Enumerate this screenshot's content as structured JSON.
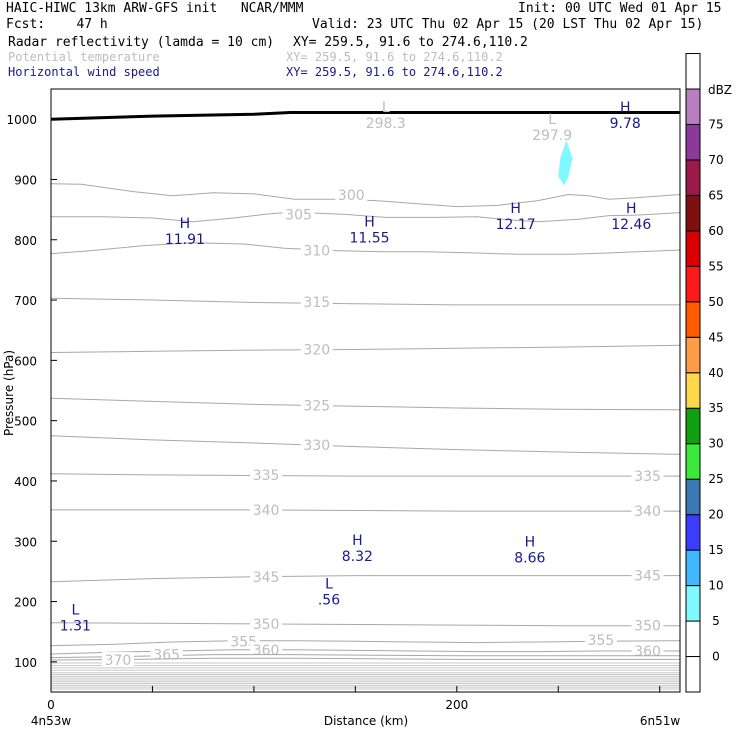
{
  "header": {
    "model": "HAIC-HIWC 13km ARW-GFS init",
    "org": "NCAR/MMM",
    "init": "Init: 00 UTC Wed 01 Apr 15",
    "fcst_label": "Fcst:",
    "fcst_value": "47 h",
    "valid": "Valid: 23 UTC Thu 02 Apr 15 (20 LST Thu 02 Apr 15)",
    "fields": [
      {
        "name": "Radar reflectivity (lamda = 10 cm)",
        "xy": "XY= 259.5, 91.6 to 274.6,110.2",
        "color": "#000000"
      },
      {
        "name": "Potential temperature",
        "xy": "XY= 259.5, 91.6 to 274.6,110.2",
        "color": "#bdbdbd"
      },
      {
        "name": "Horizontal wind speed",
        "xy": "XY= 259.5, 91.6 to 274.6,110.2",
        "color": "#1a1a8c"
      }
    ]
  },
  "chart_data": {
    "type": "contour",
    "xlabel": "Distance (km)",
    "ylabel": "Pressure (hPa)",
    "xlim": [
      0,
      310
    ],
    "ylim": [
      1050,
      50
    ],
    "x_ticks": [
      0,
      50,
      100,
      150,
      200,
      250,
      300
    ],
    "x_tick_labels": [
      "0",
      "200"
    ],
    "x_tick_label_values": [
      0,
      200
    ],
    "y_ticks": [
      100,
      200,
      300,
      400,
      500,
      600,
      700,
      800,
      900,
      1000
    ],
    "y_tick_labels": [
      "100",
      "200",
      "300",
      "400",
      "500",
      "600",
      "700",
      "800",
      "900",
      "1000"
    ],
    "start_label": "4n53w",
    "end_label": "6n51w",
    "theta_contours": [
      {
        "level": "300",
        "points": [
          [
            0,
            893
          ],
          [
            15,
            892
          ],
          [
            40,
            880
          ],
          [
            60,
            873
          ],
          [
            80,
            878
          ],
          [
            100,
            876
          ],
          [
            120,
            867
          ],
          [
            140,
            867
          ],
          [
            160,
            865
          ],
          [
            180,
            860
          ],
          [
            200,
            855
          ],
          [
            220,
            857
          ],
          [
            240,
            865
          ],
          [
            255,
            875
          ],
          [
            265,
            873
          ],
          [
            275,
            867
          ],
          [
            290,
            870
          ],
          [
            310,
            875
          ]
        ],
        "labels": [
          [
            148,
            874
          ]
        ]
      },
      {
        "level": "305",
        "points": [
          [
            0,
            838
          ],
          [
            25,
            838
          ],
          [
            50,
            836
          ],
          [
            70,
            830
          ],
          [
            90,
            836
          ],
          [
            105,
            842
          ],
          [
            115,
            845
          ],
          [
            125,
            845
          ],
          [
            145,
            842
          ],
          [
            165,
            837
          ],
          [
            190,
            837
          ],
          [
            210,
            838
          ],
          [
            230,
            832
          ],
          [
            240,
            830
          ],
          [
            260,
            834
          ],
          [
            275,
            840
          ],
          [
            290,
            841
          ],
          [
            310,
            845
          ]
        ],
        "labels": [
          [
            122,
            842
          ]
        ]
      },
      {
        "level": "310",
        "points": [
          [
            0,
            777
          ],
          [
            20,
            782
          ],
          [
            45,
            790
          ],
          [
            70,
            795
          ],
          [
            95,
            793
          ],
          [
            115,
            786
          ],
          [
            140,
            782
          ],
          [
            165,
            780
          ],
          [
            185,
            780
          ],
          [
            210,
            778
          ],
          [
            230,
            776
          ],
          [
            255,
            776
          ],
          [
            275,
            778
          ],
          [
            295,
            781
          ],
          [
            310,
            783
          ]
        ],
        "labels": [
          [
            131,
            782
          ]
        ]
      },
      {
        "level": "315",
        "points": [
          [
            0,
            703
          ],
          [
            50,
            700
          ],
          [
            100,
            696
          ],
          [
            150,
            694
          ],
          [
            200,
            692
          ],
          [
            250,
            692
          ],
          [
            310,
            692
          ]
        ],
        "labels": [
          [
            131,
            697
          ]
        ]
      },
      {
        "level": "320",
        "points": [
          [
            0,
            613
          ],
          [
            50,
            615
          ],
          [
            100,
            617
          ],
          [
            150,
            618
          ],
          [
            200,
            620
          ],
          [
            250,
            622
          ],
          [
            310,
            625
          ]
        ],
        "labels": [
          [
            131,
            618
          ]
        ]
      },
      {
        "level": "325",
        "points": [
          [
            0,
            537
          ],
          [
            50,
            532
          ],
          [
            100,
            527
          ],
          [
            150,
            524
          ],
          [
            200,
            521
          ],
          [
            250,
            519
          ],
          [
            310,
            518
          ]
        ],
        "labels": [
          [
            131,
            525
          ]
        ]
      },
      {
        "level": "330",
        "points": [
          [
            0,
            475
          ],
          [
            50,
            468
          ],
          [
            100,
            463
          ],
          [
            150,
            457
          ],
          [
            200,
            452
          ],
          [
            250,
            448
          ],
          [
            310,
            444
          ]
        ],
        "labels": [
          [
            131,
            460
          ]
        ]
      },
      {
        "level": "335",
        "points": [
          [
            0,
            412
          ],
          [
            50,
            410
          ],
          [
            100,
            409
          ],
          [
            150,
            408
          ],
          [
            200,
            408
          ],
          [
            250,
            408
          ],
          [
            310,
            408
          ]
        ],
        "labels": [
          [
            106,
            410
          ],
          [
            294,
            408
          ]
        ]
      },
      {
        "level": "340",
        "points": [
          [
            0,
            352
          ],
          [
            50,
            352
          ],
          [
            100,
            352
          ],
          [
            150,
            351
          ],
          [
            200,
            350
          ],
          [
            250,
            350
          ],
          [
            310,
            350
          ]
        ],
        "labels": [
          [
            106,
            352
          ],
          [
            294,
            350
          ]
        ]
      },
      {
        "level": "345",
        "points": [
          [
            0,
            233
          ],
          [
            50,
            238
          ],
          [
            100,
            241
          ],
          [
            150,
            243
          ],
          [
            200,
            243
          ],
          [
            250,
            243
          ],
          [
            310,
            243
          ]
        ],
        "labels": [
          [
            106,
            241
          ],
          [
            294,
            243
          ]
        ]
      },
      {
        "level": "350",
        "points": [
          [
            0,
            165
          ],
          [
            50,
            164
          ],
          [
            100,
            163
          ],
          [
            150,
            162
          ],
          [
            200,
            161
          ],
          [
            250,
            160
          ],
          [
            310,
            160
          ]
        ],
        "labels": [
          [
            106,
            163
          ],
          [
            294,
            160
          ]
        ]
      },
      {
        "level": "355",
        "points": [
          [
            0,
            127
          ],
          [
            30,
            129
          ],
          [
            60,
            133
          ],
          [
            90,
            135
          ],
          [
            120,
            135
          ],
          [
            150,
            134
          ],
          [
            180,
            133
          ],
          [
            210,
            132
          ],
          [
            240,
            133
          ],
          [
            270,
            134
          ],
          [
            310,
            135
          ]
        ],
        "labels": [
          [
            95,
            134
          ],
          [
            271,
            136
          ]
        ]
      },
      {
        "level": "360",
        "points": [
          [
            0,
            113
          ],
          [
            30,
            116
          ],
          [
            60,
            118
          ],
          [
            90,
            120
          ],
          [
            120,
            120
          ],
          [
            150,
            119
          ],
          [
            180,
            118
          ],
          [
            210,
            117
          ],
          [
            240,
            117
          ],
          [
            270,
            118
          ],
          [
            310,
            118
          ]
        ],
        "labels": [
          [
            106,
            120
          ],
          [
            294,
            118
          ]
        ]
      },
      {
        "level": "365",
        "points": [
          [
            0,
            107
          ],
          [
            40,
            109
          ],
          [
            80,
            112
          ],
          [
            120,
            112
          ],
          [
            160,
            111
          ],
          [
            200,
            110
          ],
          [
            250,
            110
          ],
          [
            310,
            110
          ]
        ],
        "labels": [
          [
            57,
            112
          ]
        ]
      },
      {
        "level": "370",
        "points": [
          [
            0,
            103
          ],
          [
            40,
            104
          ],
          [
            80,
            106
          ],
          [
            120,
            106
          ],
          [
            160,
            105
          ],
          [
            200,
            104
          ],
          [
            250,
            104
          ],
          [
            310,
            104
          ]
        ],
        "labels": [
          [
            33,
            103
          ]
        ]
      }
    ],
    "upper_band_levels": [
      55,
      58,
      61,
      64,
      67,
      70,
      73,
      76,
      79,
      82,
      86,
      90,
      94,
      98
    ],
    "hl_markers": [
      {
        "kind": "L",
        "value": "1.31",
        "x": 12,
        "y": 172,
        "color": "#1a1a8c"
      },
      {
        "kind": "L",
        "value": ".56",
        "x": 137,
        "y": 215,
        "color": "#1a1a8c"
      },
      {
        "kind": "H",
        "value": "8.32",
        "x": 151,
        "y": 287,
        "color": "#1a1a8c"
      },
      {
        "kind": "H",
        "value": "8.66",
        "x": 236,
        "y": 285,
        "color": "#1a1a8c"
      },
      {
        "kind": "H",
        "value": "11.91",
        "x": 66,
        "y": 813,
        "color": "#1a1a8c"
      },
      {
        "kind": "H",
        "value": "11.55",
        "x": 157,
        "y": 815,
        "color": "#1a1a8c"
      },
      {
        "kind": "H",
        "value": "12.17",
        "x": 229,
        "y": 838,
        "color": "#1a1a8c"
      },
      {
        "kind": "H",
        "value": "12.46",
        "x": 286,
        "y": 838,
        "color": "#1a1a8c"
      },
      {
        "kind": "H",
        "value": "9.78",
        "x": 283,
        "y": 1005,
        "color": "#1a1a8c"
      },
      {
        "kind": "L",
        "value": "298.3",
        "x": 165,
        "y": 1005,
        "color": "#bdbdbd"
      },
      {
        "kind": "L",
        "value": "297.9",
        "x": 247,
        "y": 985,
        "color": "#bdbdbd"
      }
    ],
    "reflectivity_cells": [
      {
        "dbz": 7,
        "points": [
          [
            253,
            890
          ],
          [
            255,
            905
          ],
          [
            257,
            935
          ],
          [
            254,
            965
          ],
          [
            251,
            935
          ],
          [
            250,
            905
          ]
        ]
      }
    ],
    "terrain": [
      [
        0,
        1000
      ],
      [
        50,
        1005
      ],
      [
        100,
        1008
      ],
      [
        118,
        1011
      ],
      [
        150,
        1011
      ],
      [
        200,
        1011
      ],
      [
        250,
        1011
      ],
      [
        310,
        1011
      ]
    ],
    "colorbar": {
      "unit": "dBZ",
      "bounds": [
        -5,
        0,
        5,
        10,
        15,
        20,
        25,
        30,
        35,
        40,
        45,
        50,
        55,
        60,
        65,
        70,
        75,
        80
      ],
      "labels": [
        "0",
        "5",
        "10",
        "15",
        "20",
        "25",
        "30",
        "35",
        "40",
        "45",
        "50",
        "55",
        "60",
        "65",
        "70",
        "75"
      ],
      "colors": [
        "#ffffff",
        "#ffffff",
        "#7ff9ff",
        "#3fb8ff",
        "#3c3cff",
        "#3c78b4",
        "#3ce83c",
        "#0fa00f",
        "#ffd74a",
        "#ff9c47",
        "#ff5a00",
        "#ff1a1a",
        "#d80000",
        "#7f1010",
        "#9b1a4a",
        "#8b3a9b",
        "#b87ec0",
        "#ffffff"
      ]
    }
  }
}
